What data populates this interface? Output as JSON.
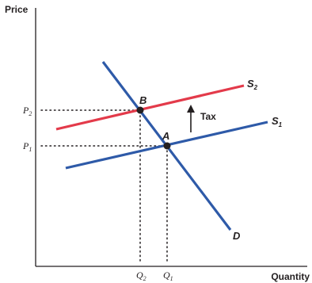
{
  "axes": {
    "y_title": "Price",
    "x_title": "Quantity"
  },
  "price_ticks": [
    {
      "letter": "P",
      "sub": "2"
    },
    {
      "letter": "P",
      "sub": "1"
    }
  ],
  "quantity_ticks": [
    {
      "letter": "Q",
      "sub": "2"
    },
    {
      "letter": "Q",
      "sub": "1"
    }
  ],
  "curves": {
    "demand": {
      "letter": "D",
      "sub": "",
      "color": "#2e5aa8"
    },
    "supply_1": {
      "letter": "S",
      "sub": "1",
      "color": "#2e5aa8"
    },
    "supply_2": {
      "letter": "S",
      "sub": "2",
      "color": "#e33a4a"
    }
  },
  "points": {
    "a": "A",
    "b": "B"
  },
  "annotation": {
    "tax_label": "Tax"
  },
  "colors": {
    "axis": "#231f20",
    "demand": "#2e5aa8",
    "supply_1": "#2e5aa8",
    "supply_2": "#e33a4a"
  }
}
